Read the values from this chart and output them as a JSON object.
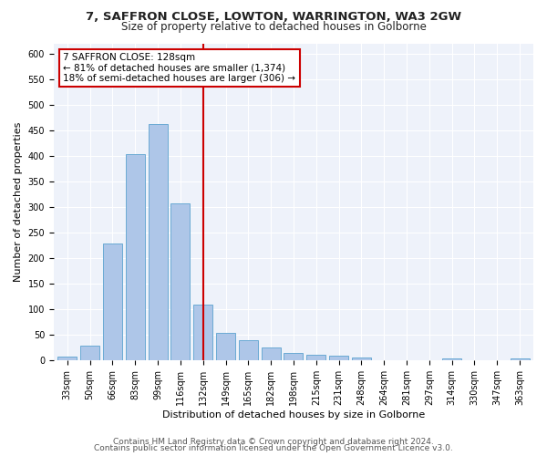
{
  "title1": "7, SAFFRON CLOSE, LOWTON, WARRINGTON, WA3 2GW",
  "title2": "Size of property relative to detached houses in Golborne",
  "xlabel": "Distribution of detached houses by size in Golborne",
  "ylabel": "Number of detached properties",
  "categories": [
    "33sqm",
    "50sqm",
    "66sqm",
    "83sqm",
    "99sqm",
    "116sqm",
    "132sqm",
    "149sqm",
    "165sqm",
    "182sqm",
    "198sqm",
    "215sqm",
    "231sqm",
    "248sqm",
    "264sqm",
    "281sqm",
    "297sqm",
    "314sqm",
    "330sqm",
    "347sqm",
    "363sqm"
  ],
  "values": [
    7,
    30,
    228,
    403,
    463,
    307,
    110,
    54,
    39,
    26,
    15,
    12,
    10,
    6,
    0,
    0,
    0,
    5,
    0,
    0,
    5
  ],
  "bar_color": "#aec6e8",
  "bar_edgecolor": "#6aaad4",
  "vline_x_index": 6.0,
  "vline_color": "#cc0000",
  "annotation_text": "7 SAFFRON CLOSE: 128sqm\n← 81% of detached houses are smaller (1,374)\n18% of semi-detached houses are larger (306) →",
  "annotation_box_color": "#ffffff",
  "annotation_box_edgecolor": "#cc0000",
  "ylim": [
    0,
    620
  ],
  "yticks": [
    0,
    50,
    100,
    150,
    200,
    250,
    300,
    350,
    400,
    450,
    500,
    550,
    600
  ],
  "footer1": "Contains HM Land Registry data © Crown copyright and database right 2024.",
  "footer2": "Contains public sector information licensed under the Open Government Licence v3.0.",
  "bg_color": "#eef2fa",
  "title1_fontsize": 9.5,
  "title2_fontsize": 8.5,
  "xlabel_fontsize": 8,
  "ylabel_fontsize": 8,
  "tick_fontsize": 7,
  "footer_fontsize": 6.5,
  "annotation_fontsize": 7.5
}
